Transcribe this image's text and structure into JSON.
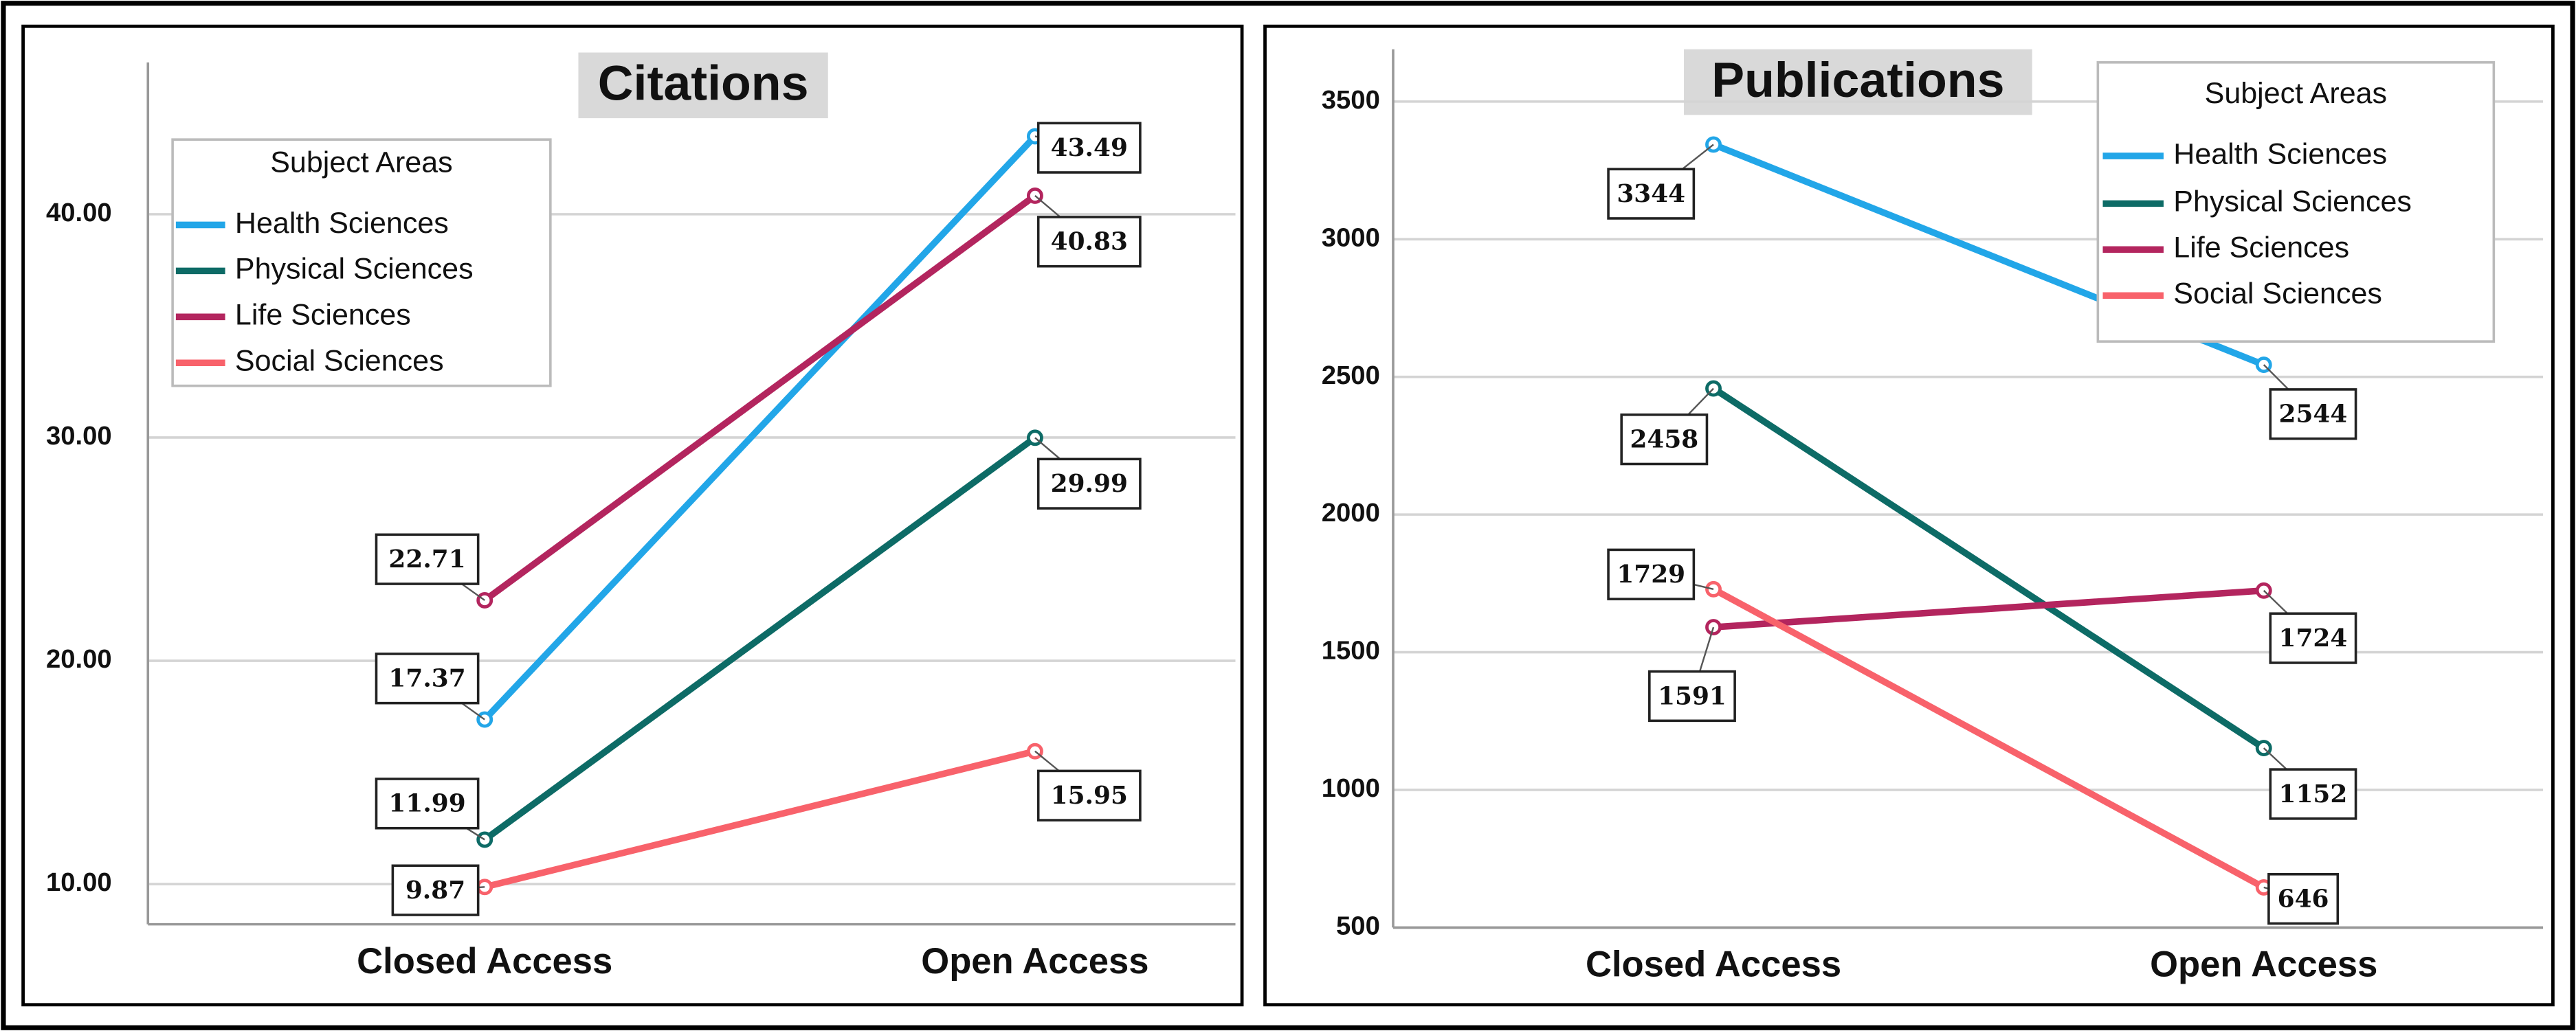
{
  "chart_data": [
    {
      "type": "line",
      "title": "Citations",
      "categories": [
        "Closed Access",
        "Open Access"
      ],
      "legend_title": "Subject Areas",
      "legend": "upper left",
      "grid": true,
      "ylim": [
        8.2,
        46.8
      ],
      "yticks": [
        {
          "value": 10,
          "label": "10.00"
        },
        {
          "value": 20,
          "label": "20.00"
        },
        {
          "value": 30,
          "label": "30.00"
        },
        {
          "value": 40,
          "label": "40.00"
        }
      ],
      "series": [
        {
          "name": "Health Sciences",
          "color": "#22a6e8",
          "values": [
            17.37,
            43.49
          ]
        },
        {
          "name": "Physical Sciences",
          "color": "#0d6b66",
          "values": [
            11.99,
            29.99
          ]
        },
        {
          "name": "Life Sciences",
          "color": "#b3255e",
          "values": [
            22.71,
            40.83
          ]
        },
        {
          "name": "Social Sciences",
          "color": "#f8626b",
          "values": [
            9.87,
            15.95
          ]
        }
      ]
    },
    {
      "type": "line",
      "title": "Publications",
      "categories": [
        "Closed Access",
        "Open Access"
      ],
      "legend_title": "Subject Areas",
      "legend": "upper right",
      "grid": true,
      "ylim": [
        500,
        3690
      ],
      "yticks": [
        500,
        1000,
        1500,
        2000,
        2500,
        3000,
        3500
      ],
      "series": [
        {
          "name": "Health Sciences",
          "color": "#22a6e8",
          "values": [
            3344,
            2544
          ]
        },
        {
          "name": "Physical Sciences",
          "color": "#0d6b66",
          "values": [
            2458,
            1152
          ]
        },
        {
          "name": "Life Sciences",
          "color": "#b3255e",
          "values": [
            1591,
            1724
          ]
        },
        {
          "name": "Social Sciences",
          "color": "#f8626b",
          "values": [
            1729,
            646
          ]
        }
      ]
    }
  ]
}
